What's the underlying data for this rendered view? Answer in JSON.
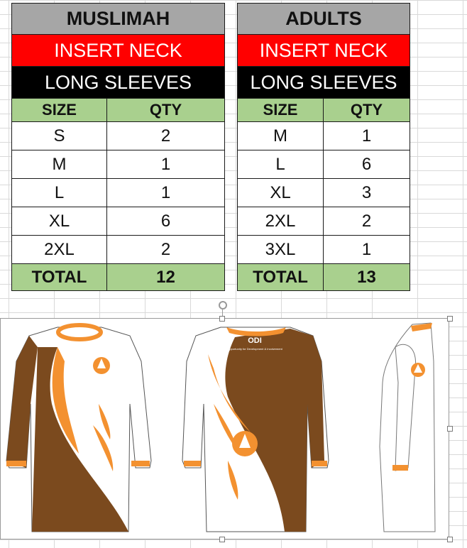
{
  "muslimah": {
    "title": "MUSLIMAH",
    "neck": "INSERT NECK",
    "sleeves": "LONG SLEEVES",
    "header": {
      "size": "SIZE",
      "qty": "QTY"
    },
    "rows": [
      {
        "size": "S",
        "qty": "2"
      },
      {
        "size": "M",
        "qty": "1"
      },
      {
        "size": "L",
        "qty": "1"
      },
      {
        "size": "XL",
        "qty": "6"
      },
      {
        "size": "2XL",
        "qty": "2"
      }
    ],
    "total_label": "TOTAL",
    "total_qty": "12"
  },
  "adults": {
    "title": "ADULTS",
    "neck": "INSERT NECK",
    "sleeves": "LONG SLEEVES",
    "header": {
      "size": "SIZE",
      "qty": "QTY"
    },
    "rows": [
      {
        "size": "M",
        "qty": "1"
      },
      {
        "size": "L",
        "qty": "6"
      },
      {
        "size": "XL",
        "qty": "3"
      },
      {
        "size": "2XL",
        "qty": "2"
      },
      {
        "size": "3XL",
        "qty": "1"
      }
    ],
    "total_label": "TOTAL",
    "total_qty": "13"
  },
  "design": {
    "logo_title": "ODI",
    "logo_subtitle": "Opportunity for Development & Involvement",
    "colors": {
      "brown": "#7b4a1e",
      "orange": "#f39130",
      "white": "#ffffff"
    }
  }
}
